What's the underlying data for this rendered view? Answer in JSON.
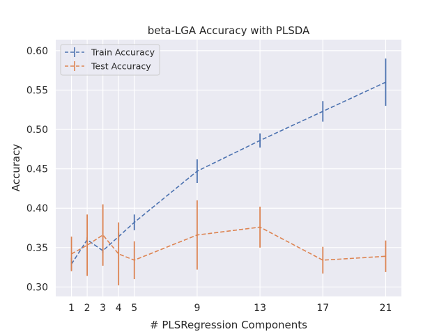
{
  "chart_data": {
    "type": "line",
    "title": "beta-LGA Accuracy with PLSDA",
    "xlabel": "# PLSRegression Components",
    "ylabel": "Accuracy",
    "x": [
      1,
      2,
      3,
      4,
      5,
      9,
      13,
      17,
      21
    ],
    "xticks": [
      "1",
      "2",
      "3",
      "4",
      "5",
      "9",
      "13",
      "17",
      "21"
    ],
    "yticks": [
      "0.30",
      "0.35",
      "0.40",
      "0.45",
      "0.50",
      "0.55",
      "0.60"
    ],
    "xlim": [
      -0.0,
      22.0
    ],
    "ylim": [
      0.288,
      0.614
    ],
    "grid": true,
    "legend_position": "top-left",
    "series": [
      {
        "name": "Train Accuracy",
        "color": "#4c72b0",
        "values": [
          0.329,
          0.36,
          0.346,
          0.364,
          0.382,
          0.447,
          0.486,
          0.523,
          0.56
        ],
        "errors": [
          0.008,
          0.003,
          0.003,
          0.005,
          0.01,
          0.015,
          0.009,
          0.013,
          0.03
        ]
      },
      {
        "name": "Test Accuracy",
        "color": "#dd8452",
        "values": [
          0.342,
          0.353,
          0.366,
          0.342,
          0.334,
          0.366,
          0.376,
          0.334,
          0.339
        ],
        "errors": [
          0.022,
          0.039,
          0.039,
          0.04,
          0.024,
          0.044,
          0.026,
          0.017,
          0.02
        ]
      }
    ]
  }
}
